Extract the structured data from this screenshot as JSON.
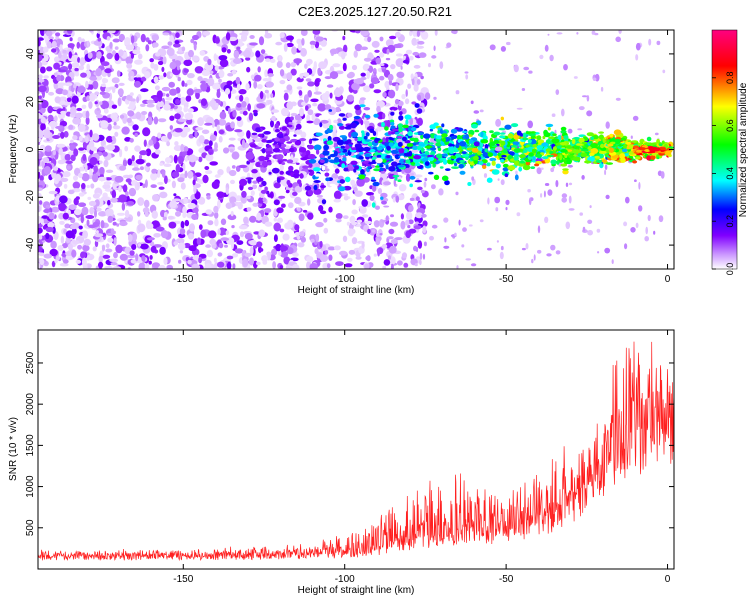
{
  "title": "C2E3.2025.127.20.50.R21",
  "chart_data": [
    {
      "type": "heatmap",
      "xlabel": "Height of straight line (km)",
      "ylabel": "Frequency (Hz)",
      "xlim": [
        -195,
        2
      ],
      "ylim": [
        -50,
        50
      ],
      "x_ticks": [
        -150,
        -100,
        -50,
        0
      ],
      "y_ticks": [
        -40,
        -20,
        0,
        20,
        40
      ],
      "colorbar": {
        "label": "Normalized spectral amplitude",
        "range": [
          0,
          1
        ],
        "ticks": [
          0.0,
          0.2,
          0.4,
          0.6,
          0.8
        ],
        "palette": [
          "#ffffff",
          "#cc99ff",
          "#8000ff",
          "#0000ff",
          "#00ffff",
          "#00ff00",
          "#ffff00",
          "#ff0000",
          "#ff00a0"
        ]
      },
      "grid": false
    },
    {
      "type": "line",
      "xlabel": "Height of straight line (km)",
      "ylabel": "SNR (10 * v/v)",
      "xlim": [
        -195,
        2
      ],
      "ylim": [
        0,
        2900
      ],
      "x_ticks": [
        -150,
        -100,
        -50,
        0
      ],
      "y_ticks": [
        500,
        1000,
        1500,
        2000,
        2500
      ],
      "color": "#ff2020",
      "envelope": {
        "x": [
          -195,
          -140,
          -110,
          -95,
          -80,
          -65,
          -50,
          -35,
          -28,
          -20,
          -15,
          -10,
          -5,
          0,
          2
        ],
        "baseline": [
          150,
          150,
          170,
          200,
          300,
          380,
          450,
          600,
          800,
          1200,
          1500,
          1600,
          1700,
          1800,
          1700
        ],
        "peak": [
          200,
          230,
          300,
          500,
          900,
          1100,
          1000,
          1300,
          1500,
          1900,
          2700,
          2600,
          2300,
          2100,
          1900
        ]
      },
      "grid": false
    }
  ]
}
